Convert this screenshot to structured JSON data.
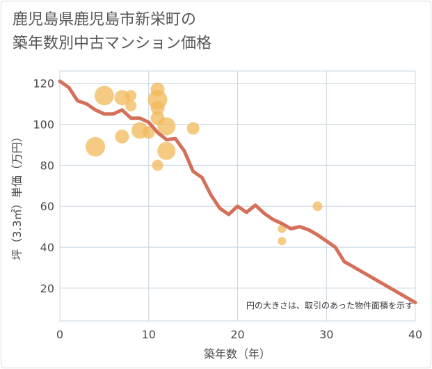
{
  "title_lines": [
    "鹿児島県鹿児島市新栄町の",
    "築年数別中古マンション価格"
  ],
  "colors": {
    "line": "#d4705a",
    "bubble": "#f2b85a",
    "grid": "#c8d4e0",
    "plot_bg": "#ffffff"
  },
  "chart_data": {
    "type": "scatter",
    "title": "鹿児島県鹿児島市新栄町の築年数別中古マンション価格",
    "xlabel": "築年数（年）",
    "ylabel": "坪（3.3㎡）単価（万円）",
    "xlim": [
      0,
      40
    ],
    "ylim": [
      4,
      126
    ],
    "xticks": [
      0,
      10,
      20,
      30,
      40
    ],
    "yticks": [
      20,
      40,
      60,
      80,
      100,
      120
    ],
    "grid": true,
    "note": "円の大きさは、取引のあった物件面積を示す",
    "line": {
      "x": [
        0,
        1,
        2,
        3,
        4,
        5,
        6,
        7,
        8,
        9,
        10,
        11,
        12,
        13,
        14,
        15,
        16,
        17,
        18,
        19,
        20,
        21,
        22,
        23,
        24,
        25,
        26,
        27,
        28,
        29,
        30,
        31,
        32,
        33,
        34,
        35,
        36,
        37,
        38,
        39,
        40
      ],
      "y": [
        121,
        118,
        111.5,
        110,
        107,
        105,
        105,
        107,
        103,
        103,
        101,
        96,
        92.5,
        93,
        87,
        77,
        74,
        65.5,
        59,
        56,
        60,
        57,
        60.5,
        56.5,
        53.5,
        51.5,
        49,
        50,
        48.5,
        46,
        43,
        40,
        33,
        30.5,
        28,
        25.5,
        23,
        20.5,
        18,
        15.5,
        13
      ]
    },
    "points": [
      {
        "x": 4,
        "y": 89,
        "size": 14
      },
      {
        "x": 5,
        "y": 114,
        "size": 14
      },
      {
        "x": 7,
        "y": 113,
        "size": 11
      },
      {
        "x": 7,
        "y": 94,
        "size": 10
      },
      {
        "x": 8,
        "y": 114,
        "size": 8
      },
      {
        "x": 8,
        "y": 109,
        "size": 8
      },
      {
        "x": 9,
        "y": 97,
        "size": 12
      },
      {
        "x": 10,
        "y": 96,
        "size": 9
      },
      {
        "x": 11,
        "y": 117,
        "size": 10
      },
      {
        "x": 11,
        "y": 112,
        "size": 14
      },
      {
        "x": 11,
        "y": 108,
        "size": 10
      },
      {
        "x": 11,
        "y": 103,
        "size": 10
      },
      {
        "x": 11,
        "y": 80,
        "size": 8
      },
      {
        "x": 12,
        "y": 99,
        "size": 13
      },
      {
        "x": 12,
        "y": 87,
        "size": 13
      },
      {
        "x": 15,
        "y": 98,
        "size": 9
      },
      {
        "x": 25,
        "y": 49,
        "size": 6
      },
      {
        "x": 25,
        "y": 43,
        "size": 6
      },
      {
        "x": 29,
        "y": 60,
        "size": 7
      }
    ]
  }
}
